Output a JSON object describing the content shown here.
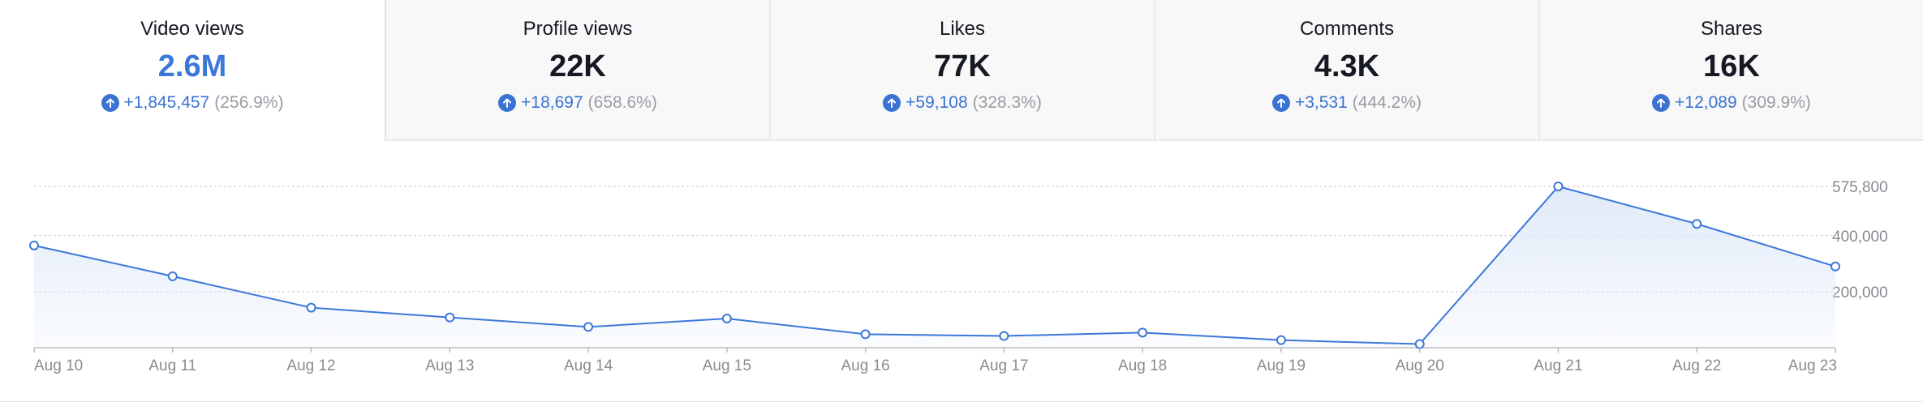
{
  "metrics": [
    {
      "label": "Video views",
      "value": "2.6M",
      "delta": "+1,845,457",
      "pct": "(256.9%)",
      "active": true
    },
    {
      "label": "Profile views",
      "value": "22K",
      "delta": "+18,697",
      "pct": "(658.6%)",
      "active": false
    },
    {
      "label": "Likes",
      "value": "77K",
      "delta": "+59,108",
      "pct": "(328.3%)",
      "active": false
    },
    {
      "label": "Comments",
      "value": "4.3K",
      "delta": "+3,531",
      "pct": "(444.2%)",
      "active": false
    },
    {
      "label": "Shares",
      "value": "16K",
      "delta": "+12,089",
      "pct": "(309.9%)",
      "active": false
    }
  ],
  "colors": {
    "accent": "#3a73d1",
    "muted": "#9a9ba3",
    "line": "#3c78d8",
    "area": "#dfe9f8"
  },
  "icons": {
    "change": "arrow-up-circle-icon"
  },
  "chart_data": {
    "type": "area",
    "series": [
      {
        "values": [
          365000,
          255000,
          143000,
          108000,
          74000,
          104000,
          48000,
          42000,
          54000,
          27000,
          13000,
          575800,
          442000,
          290000
        ]
      }
    ],
    "categories": [
      "Aug 10",
      "Aug 11",
      "Aug 12",
      "Aug 13",
      "Aug 14",
      "Aug 15",
      "Aug 16",
      "Aug 17",
      "Aug 18",
      "Aug 19",
      "Aug 20",
      "Aug 21",
      "Aug 22",
      "Aug 23"
    ],
    "y_ticks": [
      {
        "value": 575800,
        "label": "575,800"
      },
      {
        "value": 400000,
        "label": "400,000"
      },
      {
        "value": 200000,
        "label": "200,000"
      }
    ],
    "ylim": [
      0,
      575800
    ],
    "grid": true,
    "markers": "hollow-circle"
  }
}
